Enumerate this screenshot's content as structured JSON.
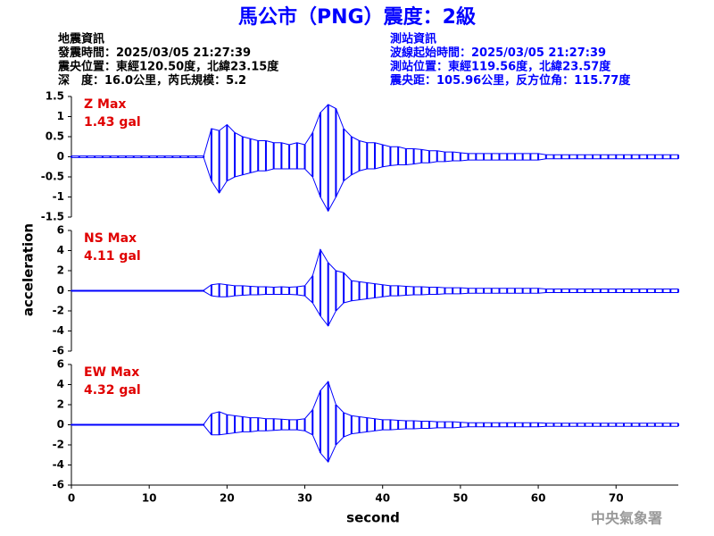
{
  "header": {
    "title": "馬公市（PNG）震度：2級",
    "left_lines": [
      "地震資訊",
      "發震時間：2025/03/05 21:27:39",
      "震央位置：東經120.50度，北緯23.15度",
      "深　度：16.0公里，芮氏規模：5.2"
    ],
    "right_lines": [
      "測站資訊",
      "波線起始時間：2025/03/05 21:27:39",
      "測站位置：東經119.56度，北緯23.57度",
      "震央距：105.96公里，反方位角：115.77度"
    ]
  },
  "xlabel": "second",
  "ylabel": "acceleration",
  "footer": "中央氣象署",
  "chart_data": [
    {
      "type": "envelope",
      "annotations": [
        "Z Max",
        "1.43 gal"
      ],
      "xlim": [
        0,
        78
      ],
      "ylim": [
        -1.5,
        1.5
      ],
      "yticks": [
        -1.5,
        -1,
        -0.5,
        0,
        0.5,
        1,
        1.5
      ],
      "x": [
        0,
        1,
        2,
        3,
        4,
        5,
        6,
        7,
        8,
        9,
        10,
        11,
        12,
        13,
        14,
        15,
        16,
        17,
        18,
        19,
        20,
        21,
        22,
        23,
        24,
        25,
        26,
        27,
        28,
        29,
        30,
        31,
        32,
        33,
        34,
        35,
        36,
        37,
        38,
        39,
        40,
        41,
        42,
        43,
        44,
        45,
        46,
        47,
        48,
        49,
        50,
        51,
        52,
        53,
        54,
        55,
        56,
        57,
        58,
        59,
        60,
        61,
        62,
        63,
        64,
        65,
        66,
        67,
        68,
        69,
        70,
        71,
        72,
        73,
        74,
        75,
        76,
        77,
        78
      ],
      "series": [
        {
          "color": "#0000ff",
          "values": [
            0.02,
            0.02,
            0.02,
            0.02,
            0.02,
            0.02,
            0.02,
            0.02,
            0.02,
            0.02,
            0.02,
            0.02,
            0.02,
            0.02,
            0.02,
            0.02,
            0.02,
            0.02,
            0.7,
            0.65,
            0.8,
            0.6,
            0.5,
            0.45,
            0.4,
            0.4,
            0.35,
            0.35,
            0.3,
            0.35,
            0.3,
            0.6,
            1.1,
            1.3,
            1.2,
            0.7,
            0.5,
            0.4,
            0.35,
            0.35,
            0.3,
            0.25,
            0.25,
            0.2,
            0.2,
            0.18,
            0.15,
            0.15,
            0.12,
            0.12,
            0.1,
            0.08,
            0.08,
            0.08,
            0.08,
            0.08,
            0.08,
            0.08,
            0.08,
            0.08,
            0.08,
            0.05,
            0.05,
            0.05,
            0.05,
            0.05,
            0.05,
            0.05,
            0.05,
            0.05,
            0.05,
            0.05,
            0.05,
            0.05,
            0.05,
            0.05,
            0.05,
            0.05,
            0.05
          ]
        },
        {
          "color": "#0000ff",
          "values": [
            -0.02,
            -0.02,
            -0.02,
            -0.02,
            -0.02,
            -0.02,
            -0.02,
            -0.02,
            -0.02,
            -0.02,
            -0.02,
            -0.02,
            -0.02,
            -0.02,
            -0.02,
            -0.02,
            -0.02,
            -0.02,
            -0.6,
            -0.9,
            -0.6,
            -0.5,
            -0.45,
            -0.4,
            -0.35,
            -0.35,
            -0.3,
            -0.3,
            -0.3,
            -0.3,
            -0.3,
            -0.5,
            -1.0,
            -1.35,
            -1.0,
            -0.6,
            -0.45,
            -0.35,
            -0.3,
            -0.3,
            -0.25,
            -0.22,
            -0.2,
            -0.2,
            -0.18,
            -0.15,
            -0.15,
            -0.12,
            -0.12,
            -0.1,
            -0.1,
            -0.08,
            -0.08,
            -0.08,
            -0.08,
            -0.08,
            -0.08,
            -0.08,
            -0.08,
            -0.08,
            -0.08,
            -0.05,
            -0.05,
            -0.05,
            -0.05,
            -0.05,
            -0.05,
            -0.05,
            -0.05,
            -0.05,
            -0.05,
            -0.05,
            -0.05,
            -0.05,
            -0.05,
            -0.05,
            -0.05,
            -0.05,
            -0.05
          ]
        }
      ]
    },
    {
      "type": "envelope",
      "annotations": [
        "NS Max",
        "4.11 gal"
      ],
      "xlim": [
        0,
        78
      ],
      "ylim": [
        -6,
        6
      ],
      "yticks": [
        -6,
        -4,
        -2,
        0,
        2,
        4,
        6
      ],
      "x": [
        0,
        1,
        2,
        3,
        4,
        5,
        6,
        7,
        8,
        9,
        10,
        11,
        12,
        13,
        14,
        15,
        16,
        17,
        18,
        19,
        20,
        21,
        22,
        23,
        24,
        25,
        26,
        27,
        28,
        29,
        30,
        31,
        32,
        33,
        34,
        35,
        36,
        37,
        38,
        39,
        40,
        41,
        42,
        43,
        44,
        45,
        46,
        47,
        48,
        49,
        50,
        51,
        52,
        53,
        54,
        55,
        56,
        57,
        58,
        59,
        60,
        61,
        62,
        63,
        64,
        65,
        66,
        67,
        68,
        69,
        70,
        71,
        72,
        73,
        74,
        75,
        76,
        77,
        78
      ],
      "series": [
        {
          "color": "#0000ff",
          "values": [
            0.05,
            0.05,
            0.05,
            0.05,
            0.05,
            0.05,
            0.05,
            0.05,
            0.05,
            0.05,
            0.05,
            0.05,
            0.05,
            0.05,
            0.05,
            0.05,
            0.05,
            0.05,
            0.6,
            0.7,
            0.6,
            0.5,
            0.5,
            0.45,
            0.4,
            0.4,
            0.35,
            0.4,
            0.35,
            0.4,
            0.5,
            1.5,
            4.1,
            2.8,
            2.0,
            1.8,
            1.0,
            0.9,
            0.8,
            0.7,
            0.6,
            0.5,
            0.5,
            0.45,
            0.4,
            0.4,
            0.35,
            0.35,
            0.3,
            0.3,
            0.3,
            0.25,
            0.25,
            0.25,
            0.25,
            0.25,
            0.25,
            0.25,
            0.25,
            0.25,
            0.25,
            0.18,
            0.18,
            0.18,
            0.18,
            0.18,
            0.18,
            0.18,
            0.18,
            0.18,
            0.18,
            0.18,
            0.18,
            0.18,
            0.18,
            0.18,
            0.18,
            0.18,
            0.18
          ]
        },
        {
          "color": "#0000ff",
          "values": [
            -0.05,
            -0.05,
            -0.05,
            -0.05,
            -0.05,
            -0.05,
            -0.05,
            -0.05,
            -0.05,
            -0.05,
            -0.05,
            -0.05,
            -0.05,
            -0.05,
            -0.05,
            -0.05,
            -0.05,
            -0.05,
            -0.5,
            -0.6,
            -0.6,
            -0.5,
            -0.45,
            -0.4,
            -0.4,
            -0.35,
            -0.35,
            -0.35,
            -0.35,
            -0.4,
            -0.5,
            -1.2,
            -2.5,
            -3.5,
            -2.0,
            -1.2,
            -1.0,
            -0.9,
            -0.8,
            -0.7,
            -0.6,
            -0.5,
            -0.5,
            -0.45,
            -0.4,
            -0.4,
            -0.35,
            -0.35,
            -0.3,
            -0.3,
            -0.3,
            -0.25,
            -0.25,
            -0.25,
            -0.25,
            -0.25,
            -0.25,
            -0.25,
            -0.25,
            -0.25,
            -0.25,
            -0.18,
            -0.18,
            -0.18,
            -0.18,
            -0.18,
            -0.18,
            -0.18,
            -0.18,
            -0.18,
            -0.18,
            -0.18,
            -0.18,
            -0.18,
            -0.18,
            -0.18,
            -0.18,
            -0.18,
            -0.18
          ]
        }
      ]
    },
    {
      "type": "envelope",
      "annotations": [
        "EW Max",
        "4.32 gal"
      ],
      "xlim": [
        0,
        78
      ],
      "ylim": [
        -6,
        6
      ],
      "yticks": [
        -6,
        -4,
        -2,
        0,
        2,
        4,
        6
      ],
      "xticks": [
        0,
        10,
        20,
        30,
        40,
        50,
        60,
        70
      ],
      "x": [
        0,
        1,
        2,
        3,
        4,
        5,
        6,
        7,
        8,
        9,
        10,
        11,
        12,
        13,
        14,
        15,
        16,
        17,
        18,
        19,
        20,
        21,
        22,
        23,
        24,
        25,
        26,
        27,
        28,
        29,
        30,
        31,
        32,
        33,
        34,
        35,
        36,
        37,
        38,
        39,
        40,
        41,
        42,
        43,
        44,
        45,
        46,
        47,
        48,
        49,
        50,
        51,
        52,
        53,
        54,
        55,
        56,
        57,
        58,
        59,
        60,
        61,
        62,
        63,
        64,
        65,
        66,
        67,
        68,
        69,
        70,
        71,
        72,
        73,
        74,
        75,
        76,
        77,
        78
      ],
      "series": [
        {
          "color": "#0000ff",
          "values": [
            0.05,
            0.05,
            0.05,
            0.05,
            0.05,
            0.05,
            0.05,
            0.05,
            0.05,
            0.05,
            0.05,
            0.05,
            0.05,
            0.05,
            0.05,
            0.05,
            0.05,
            0.05,
            1.1,
            1.3,
            1.0,
            0.9,
            0.8,
            0.7,
            0.7,
            0.6,
            0.6,
            0.55,
            0.5,
            0.5,
            0.6,
            1.5,
            3.4,
            4.3,
            2.0,
            1.2,
            0.9,
            0.8,
            0.7,
            0.6,
            0.5,
            0.5,
            0.45,
            0.4,
            0.4,
            0.35,
            0.35,
            0.3,
            0.3,
            0.3,
            0.25,
            0.2,
            0.2,
            0.2,
            0.2,
            0.2,
            0.2,
            0.2,
            0.2,
            0.2,
            0.2,
            0.15,
            0.15,
            0.15,
            0.15,
            0.15,
            0.15,
            0.15,
            0.15,
            0.15,
            0.15,
            0.15,
            0.15,
            0.15,
            0.15,
            0.15,
            0.15,
            0.15,
            0.15
          ]
        },
        {
          "color": "#0000ff",
          "values": [
            -0.05,
            -0.05,
            -0.05,
            -0.05,
            -0.05,
            -0.05,
            -0.05,
            -0.05,
            -0.05,
            -0.05,
            -0.05,
            -0.05,
            -0.05,
            -0.05,
            -0.05,
            -0.05,
            -0.05,
            -0.05,
            -1.0,
            -1.0,
            -0.9,
            -0.8,
            -0.7,
            -0.7,
            -0.6,
            -0.6,
            -0.55,
            -0.5,
            -0.5,
            -0.5,
            -0.6,
            -1.0,
            -2.8,
            -3.7,
            -2.0,
            -1.2,
            -0.9,
            -0.8,
            -0.7,
            -0.6,
            -0.5,
            -0.5,
            -0.45,
            -0.4,
            -0.4,
            -0.35,
            -0.35,
            -0.3,
            -0.3,
            -0.3,
            -0.25,
            -0.2,
            -0.2,
            -0.2,
            -0.2,
            -0.2,
            -0.2,
            -0.2,
            -0.2,
            -0.2,
            -0.2,
            -0.15,
            -0.15,
            -0.15,
            -0.15,
            -0.15,
            -0.15,
            -0.15,
            -0.15,
            -0.15,
            -0.15,
            -0.15,
            -0.15,
            -0.15,
            -0.15,
            -0.15,
            -0.15,
            -0.15,
            -0.15
          ]
        }
      ]
    }
  ]
}
